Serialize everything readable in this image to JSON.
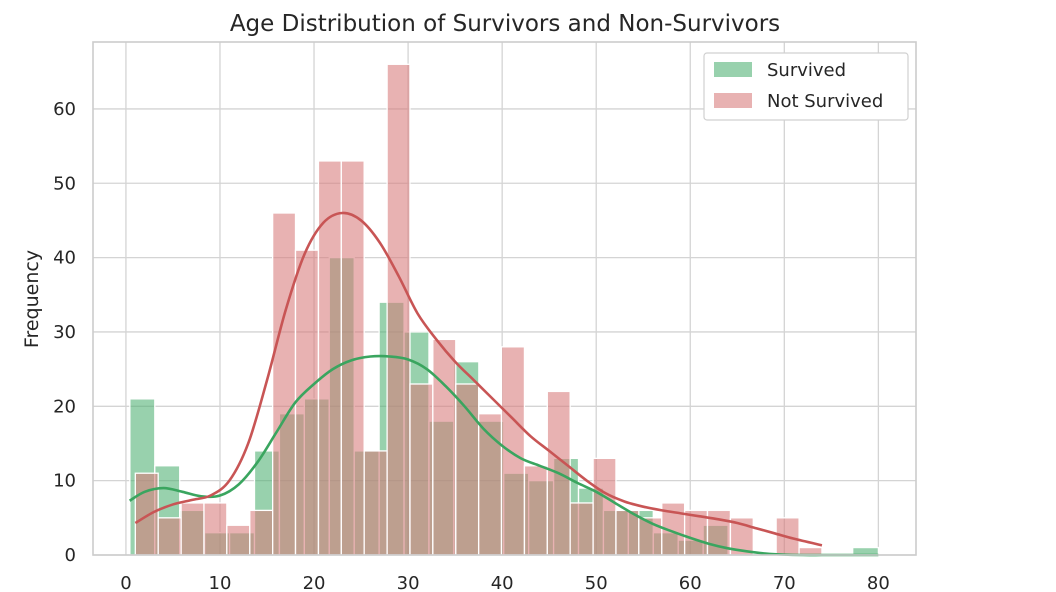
{
  "chart_data": {
    "type": "bar",
    "subtype": "histogram with kde",
    "title": "Age Distribution of Survivors and Non-Survivors",
    "xlabel": "",
    "ylabel": "Frequency",
    "xlim": [
      -3.5,
      84
    ],
    "ylim": [
      0,
      69
    ],
    "x_ticks": [
      0,
      10,
      20,
      30,
      40,
      50,
      60,
      70,
      80
    ],
    "y_ticks": [
      0,
      10,
      20,
      30,
      40,
      50,
      60
    ],
    "grid": true,
    "legend_position": "top-right",
    "series": [
      {
        "name": "Survived",
        "color": "#4daf72",
        "kde_color": "#3aa55f",
        "bins": [
          {
            "x0": 0.42,
            "x1": 3.07,
            "count": 21
          },
          {
            "x0": 3.07,
            "x1": 5.72,
            "count": 12
          },
          {
            "x0": 5.72,
            "x1": 8.37,
            "count": 6
          },
          {
            "x0": 8.37,
            "x1": 11.02,
            "count": 3
          },
          {
            "x0": 11.02,
            "x1": 13.67,
            "count": 3
          },
          {
            "x0": 13.67,
            "x1": 16.32,
            "count": 14
          },
          {
            "x0": 16.32,
            "x1": 18.97,
            "count": 19
          },
          {
            "x0": 18.97,
            "x1": 21.62,
            "count": 21
          },
          {
            "x0": 21.62,
            "x1": 24.27,
            "count": 40
          },
          {
            "x0": 24.27,
            "x1": 26.92,
            "count": 14
          },
          {
            "x0": 26.92,
            "x1": 29.57,
            "count": 34
          },
          {
            "x0": 29.57,
            "x1": 32.22,
            "count": 30
          },
          {
            "x0": 32.22,
            "x1": 34.87,
            "count": 18
          },
          {
            "x0": 34.87,
            "x1": 37.52,
            "count": 26
          },
          {
            "x0": 37.52,
            "x1": 40.17,
            "count": 18
          },
          {
            "x0": 40.17,
            "x1": 42.82,
            "count": 11
          },
          {
            "x0": 42.82,
            "x1": 45.47,
            "count": 10
          },
          {
            "x0": 45.47,
            "x1": 48.12,
            "count": 13
          },
          {
            "x0": 48.12,
            "x1": 50.77,
            "count": 9
          },
          {
            "x0": 50.77,
            "x1": 53.42,
            "count": 6
          },
          {
            "x0": 53.42,
            "x1": 56.07,
            "count": 6
          },
          {
            "x0": 56.07,
            "x1": 58.72,
            "count": 3
          },
          {
            "x0": 58.72,
            "x1": 61.37,
            "count": 2
          },
          {
            "x0": 61.37,
            "x1": 64.02,
            "count": 4
          },
          {
            "x0": 64.02,
            "x1": 66.67,
            "count": 0
          },
          {
            "x0": 66.67,
            "x1": 69.32,
            "count": 0
          },
          {
            "x0": 69.32,
            "x1": 71.97,
            "count": 0
          },
          {
            "x0": 71.97,
            "x1": 74.62,
            "count": 0
          },
          {
            "x0": 74.62,
            "x1": 77.27,
            "count": 0
          },
          {
            "x0": 77.27,
            "x1": 80.0,
            "count": 1
          }
        ],
        "kde": {
          "x": [
            0.4,
            2,
            4,
            6,
            8,
            10,
            12,
            14,
            16,
            18,
            20,
            22,
            24,
            26,
            28,
            30,
            32,
            34,
            36,
            38,
            40,
            42,
            44,
            46,
            48,
            50,
            52,
            54,
            56,
            58,
            60,
            62,
            64,
            66,
            68,
            70,
            72,
            74,
            76,
            78,
            80
          ],
          "y": [
            7.3,
            8.5,
            9.0,
            8.5,
            7.9,
            8.0,
            9.5,
            12.5,
            16.5,
            20.5,
            23.0,
            25.0,
            26.2,
            26.7,
            26.7,
            26.3,
            25.0,
            22.7,
            20.0,
            17.0,
            14.7,
            13.0,
            12.0,
            11.0,
            9.7,
            8.5,
            7.0,
            5.5,
            4.2,
            3.2,
            2.3,
            1.5,
            0.9,
            0.5,
            0.2,
            0.05,
            0.0,
            0.0,
            0.0,
            0.0,
            0.0
          ]
        }
      },
      {
        "name": "Not Survived",
        "color": "#d77b7b",
        "kde_color": "#c85555",
        "bins": [
          {
            "x0": 1.0,
            "x1": 3.43,
            "count": 11
          },
          {
            "x0": 3.43,
            "x1": 5.87,
            "count": 5
          },
          {
            "x0": 5.87,
            "x1": 8.3,
            "count": 7
          },
          {
            "x0": 8.3,
            "x1": 10.73,
            "count": 7
          },
          {
            "x0": 10.73,
            "x1": 13.17,
            "count": 4
          },
          {
            "x0": 13.17,
            "x1": 15.6,
            "count": 6
          },
          {
            "x0": 15.6,
            "x1": 18.03,
            "count": 46
          },
          {
            "x0": 18.03,
            "x1": 20.47,
            "count": 41
          },
          {
            "x0": 20.47,
            "x1": 22.9,
            "count": 53
          },
          {
            "x0": 22.9,
            "x1": 25.33,
            "count": 53
          },
          {
            "x0": 25.33,
            "x1": 27.77,
            "count": 14
          },
          {
            "x0": 27.77,
            "x1": 30.2,
            "count": 66
          },
          {
            "x0": 30.2,
            "x1": 32.63,
            "count": 23
          },
          {
            "x0": 32.63,
            "x1": 35.07,
            "count": 29
          },
          {
            "x0": 35.07,
            "x1": 37.5,
            "count": 23
          },
          {
            "x0": 37.5,
            "x1": 39.93,
            "count": 19
          },
          {
            "x0": 39.93,
            "x1": 42.37,
            "count": 28
          },
          {
            "x0": 42.37,
            "x1": 44.8,
            "count": 12
          },
          {
            "x0": 44.8,
            "x1": 47.23,
            "count": 22
          },
          {
            "x0": 47.23,
            "x1": 49.67,
            "count": 7
          },
          {
            "x0": 49.67,
            "x1": 52.1,
            "count": 13
          },
          {
            "x0": 52.1,
            "x1": 54.53,
            "count": 6
          },
          {
            "x0": 54.53,
            "x1": 56.97,
            "count": 5
          },
          {
            "x0": 56.97,
            "x1": 59.4,
            "count": 7
          },
          {
            "x0": 59.4,
            "x1": 61.83,
            "count": 6
          },
          {
            "x0": 61.83,
            "x1": 64.27,
            "count": 6
          },
          {
            "x0": 64.27,
            "x1": 66.7,
            "count": 5
          },
          {
            "x0": 66.7,
            "x1": 69.13,
            "count": 0
          },
          {
            "x0": 69.13,
            "x1": 71.57,
            "count": 5
          },
          {
            "x0": 71.57,
            "x1": 74.0,
            "count": 1
          }
        ],
        "kde": {
          "x": [
            1,
            3,
            5,
            7,
            9,
            11,
            13,
            15,
            17,
            19,
            21,
            23,
            25,
            27,
            29,
            31,
            33,
            35,
            37,
            39,
            41,
            43,
            45,
            47,
            49,
            51,
            53,
            55,
            57,
            59,
            61,
            63,
            65,
            67,
            69,
            71,
            74
          ],
          "y": [
            4.3,
            5.8,
            6.8,
            7.4,
            8.0,
            10.0,
            15.0,
            23.5,
            33.0,
            40.5,
            44.7,
            46.0,
            45.0,
            42.0,
            37.5,
            32.5,
            29.0,
            26.0,
            23.5,
            21.0,
            18.5,
            16.0,
            14.0,
            12.0,
            10.0,
            8.3,
            7.2,
            6.5,
            6.0,
            5.6,
            5.2,
            4.8,
            4.3,
            3.6,
            2.9,
            2.2,
            1.3
          ]
        }
      }
    ]
  }
}
